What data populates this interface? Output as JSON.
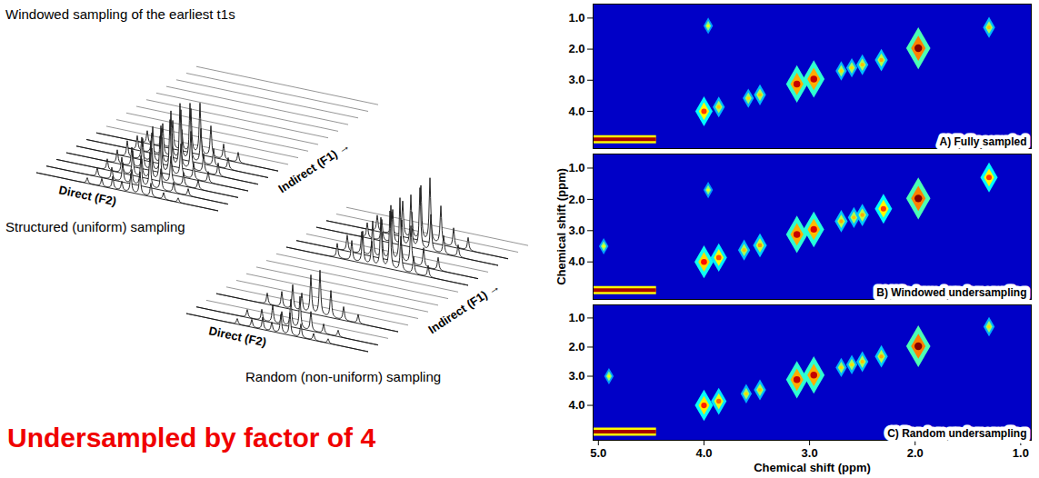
{
  "schematic": {
    "title": "Windowed sampling of the earliest t1s",
    "peak_profile": [
      {
        "pos": 0.28,
        "height": 0.25
      },
      {
        "pos": 0.36,
        "height": 0.35
      },
      {
        "pos": 0.42,
        "height": 0.55
      },
      {
        "pos": 0.47,
        "height": 0.4
      },
      {
        "pos": 0.52,
        "height": 0.85
      },
      {
        "pos": 0.57,
        "height": 1.0
      },
      {
        "pos": 0.63,
        "height": 0.6
      },
      {
        "pos": 0.7,
        "height": 0.3
      },
      {
        "pos": 0.78,
        "height": 0.2
      }
    ],
    "panels": [
      {
        "caption": "Structured (uniform) sampling",
        "direct_label": "Direct (F2)",
        "indirect_label": "Indirect (F1) →",
        "rows": [
          0.35,
          0.55,
          0.7,
          0.85,
          1,
          0.9,
          0.8,
          0,
          0,
          0,
          0,
          0,
          0,
          0,
          0,
          0,
          0
        ]
      },
      {
        "caption": "Random (non-uniform) sampling",
        "direct_label": "Direct (F2)",
        "indirect_label": "Indirect (F1) →",
        "rows": [
          0.35,
          0.5,
          0,
          0.7,
          0,
          0,
          0,
          0,
          0,
          0,
          0.9,
          1,
          0,
          0.95,
          1,
          0,
          0
        ]
      }
    ]
  },
  "headline": "Undersampled by factor of 4",
  "chart_data": [
    {
      "type": "heatmap",
      "title": "A) Fully sampled",
      "xlim": [
        5.05,
        0.9
      ],
      "xticks": [
        5,
        4,
        3,
        2,
        1
      ],
      "ylim": [
        5.2,
        0.55
      ],
      "yticks": [
        1,
        2,
        3,
        4
      ],
      "zlim": [
        0,
        1
      ],
      "tick_labels": "y",
      "band": {
        "x1": 5.05,
        "x2": 4.45,
        "y": 4.9,
        "value": 0.9
      },
      "peaks": [
        {
          "x": 4.0,
          "y": 4.0,
          "value": 0.6
        },
        {
          "x": 3.86,
          "y": 3.86,
          "value": 0.3
        },
        {
          "x": 3.58,
          "y": 3.58,
          "value": 0.25
        },
        {
          "x": 3.47,
          "y": 3.47,
          "value": 0.3
        },
        {
          "x": 3.12,
          "y": 3.12,
          "value": 0.85
        },
        {
          "x": 2.96,
          "y": 2.96,
          "value": 0.85
        },
        {
          "x": 2.7,
          "y": 2.7,
          "value": 0.25
        },
        {
          "x": 2.6,
          "y": 2.6,
          "value": 0.25
        },
        {
          "x": 2.5,
          "y": 2.5,
          "value": 0.3
        },
        {
          "x": 2.32,
          "y": 2.35,
          "value": 0.35
        },
        {
          "x": 1.97,
          "y": 1.97,
          "value": 1.0
        },
        {
          "x": 1.3,
          "y": 1.3,
          "value": 0.3
        },
        {
          "x": 3.96,
          "y": 1.25,
          "value": 0.15
        }
      ]
    },
    {
      "type": "heatmap",
      "title": "B) Windowed undersampling",
      "ylabel": "Chemical shift (ppm)",
      "xlim": [
        5.05,
        0.9
      ],
      "xticks": [
        5,
        4,
        3,
        2,
        1
      ],
      "ylim": [
        5.2,
        0.55
      ],
      "yticks": [
        1,
        2,
        3,
        4
      ],
      "zlim": [
        0,
        1
      ],
      "tick_labels": "y",
      "band": {
        "x1": 5.05,
        "x2": 4.45,
        "y": 4.9,
        "value": 0.9
      },
      "peaks": [
        {
          "x": 4.0,
          "y": 4.0,
          "value": 0.7
        },
        {
          "x": 3.86,
          "y": 3.86,
          "value": 0.55
        },
        {
          "x": 3.62,
          "y": 3.62,
          "value": 0.3
        },
        {
          "x": 3.47,
          "y": 3.47,
          "value": 0.4
        },
        {
          "x": 3.12,
          "y": 3.12,
          "value": 0.85
        },
        {
          "x": 2.96,
          "y": 2.96,
          "value": 0.8
        },
        {
          "x": 2.7,
          "y": 2.7,
          "value": 0.35
        },
        {
          "x": 2.58,
          "y": 2.58,
          "value": 0.3
        },
        {
          "x": 2.5,
          "y": 2.5,
          "value": 0.35
        },
        {
          "x": 2.3,
          "y": 2.3,
          "value": 0.6
        },
        {
          "x": 1.97,
          "y": 1.97,
          "value": 1.0
        },
        {
          "x": 1.3,
          "y": 1.3,
          "value": 0.6
        },
        {
          "x": 4.95,
          "y": 3.5,
          "value": 0.15
        },
        {
          "x": 3.96,
          "y": 1.7,
          "value": 0.15
        }
      ]
    },
    {
      "type": "heatmap",
      "title": "C) Random undersampling",
      "xlabel": "Chemical shift (ppm)",
      "xlim": [
        5.05,
        0.9
      ],
      "xticks": [
        5,
        4,
        3,
        2,
        1
      ],
      "ylim": [
        5.2,
        0.55
      ],
      "yticks": [
        1,
        2,
        3,
        4
      ],
      "zlim": [
        0,
        1
      ],
      "band": {
        "x1": 5.05,
        "x2": 4.45,
        "y": 4.9,
        "value": 0.9
      },
      "peaks": [
        {
          "x": 4.0,
          "y": 4.0,
          "value": 0.65
        },
        {
          "x": 3.86,
          "y": 3.86,
          "value": 0.5
        },
        {
          "x": 3.6,
          "y": 3.6,
          "value": 0.25
        },
        {
          "x": 3.47,
          "y": 3.47,
          "value": 0.3
        },
        {
          "x": 3.12,
          "y": 3.12,
          "value": 0.85
        },
        {
          "x": 2.96,
          "y": 2.96,
          "value": 0.85
        },
        {
          "x": 2.7,
          "y": 2.7,
          "value": 0.25
        },
        {
          "x": 2.6,
          "y": 2.6,
          "value": 0.25
        },
        {
          "x": 2.5,
          "y": 2.5,
          "value": 0.3
        },
        {
          "x": 2.32,
          "y": 2.32,
          "value": 0.35
        },
        {
          "x": 1.97,
          "y": 1.97,
          "value": 1.0
        },
        {
          "x": 1.3,
          "y": 1.3,
          "value": 0.25
        },
        {
          "x": 4.9,
          "y": 3.0,
          "value": 0.15
        }
      ]
    }
  ]
}
